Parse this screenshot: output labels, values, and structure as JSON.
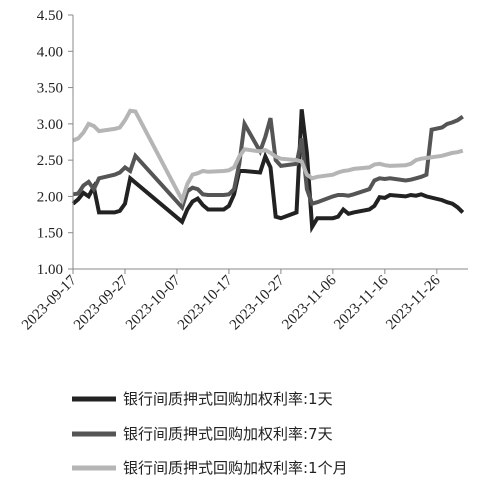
{
  "chart_data": {
    "type": "line",
    "title": "",
    "xlabel": "",
    "ylabel": "",
    "ylim": [
      1.0,
      4.5
    ],
    "y_ticks": [
      "4.50",
      "4.00",
      "3.50",
      "3.00",
      "2.50",
      "2.00",
      "1.50",
      "1.00"
    ],
    "y_tick_values": [
      4.5,
      4.0,
      3.5,
      3.0,
      2.5,
      2.0,
      1.5,
      1.0
    ],
    "x_range": [
      "2023-09-17",
      "2023-12-02"
    ],
    "x_ticks": [
      "2023-09-17",
      "2023-09-27",
      "2023-10-07",
      "2023-10-17",
      "2023-10-27",
      "2023-11-06",
      "2023-11-16",
      "2023-11-26"
    ],
    "grid": false,
    "legend_position": "bottom",
    "series": [
      {
        "name": "银行间质押式回购加权利率:1天",
        "color": "#222222",
        "points": [
          [
            "2023-09-17",
            1.9
          ],
          [
            "2023-09-18",
            1.96
          ],
          [
            "2023-09-19",
            2.05
          ],
          [
            "2023-09-20",
            2.0
          ],
          [
            "2023-09-21",
            2.13
          ],
          [
            "2023-09-22",
            1.78
          ],
          [
            "2023-09-25",
            1.78
          ],
          [
            "2023-09-26",
            1.8
          ],
          [
            "2023-09-27",
            1.9
          ],
          [
            "2023-09-28",
            2.25
          ],
          [
            "2023-10-08",
            1.65
          ],
          [
            "2023-10-09",
            1.82
          ],
          [
            "2023-10-10",
            1.93
          ],
          [
            "2023-10-11",
            1.97
          ],
          [
            "2023-10-12",
            1.88
          ],
          [
            "2023-10-13",
            1.82
          ],
          [
            "2023-10-16",
            1.82
          ],
          [
            "2023-10-17",
            1.87
          ],
          [
            "2023-10-18",
            2.03
          ],
          [
            "2023-10-19",
            2.35
          ],
          [
            "2023-10-20",
            2.35
          ],
          [
            "2023-10-23",
            2.33
          ],
          [
            "2023-10-24",
            2.55
          ],
          [
            "2023-10-25",
            2.4
          ],
          [
            "2023-10-26",
            1.72
          ],
          [
            "2023-10-27",
            1.7
          ],
          [
            "2023-10-30",
            1.78
          ],
          [
            "2023-10-31",
            3.2
          ],
          [
            "2023-11-01",
            2.6
          ],
          [
            "2023-11-02",
            1.58
          ],
          [
            "2023-11-03",
            1.7
          ],
          [
            "2023-11-06",
            1.7
          ],
          [
            "2023-11-07",
            1.72
          ],
          [
            "2023-11-08",
            1.82
          ],
          [
            "2023-11-09",
            1.76
          ],
          [
            "2023-11-10",
            1.78
          ],
          [
            "2023-11-13",
            1.82
          ],
          [
            "2023-11-14",
            1.87
          ],
          [
            "2023-11-15",
            1.99
          ],
          [
            "2023-11-16",
            1.98
          ],
          [
            "2023-11-17",
            2.02
          ],
          [
            "2023-11-20",
            2.0
          ],
          [
            "2023-11-21",
            2.02
          ],
          [
            "2023-11-22",
            2.01
          ],
          [
            "2023-11-23",
            2.03
          ],
          [
            "2023-11-24",
            2.0
          ],
          [
            "2023-11-27",
            1.95
          ],
          [
            "2023-11-28",
            1.92
          ],
          [
            "2023-11-29",
            1.9
          ],
          [
            "2023-11-30",
            1.85
          ],
          [
            "2023-12-01",
            1.78
          ]
        ]
      },
      {
        "name": "银行间质押式回购加权利率:7天",
        "color": "#555555",
        "points": [
          [
            "2023-09-17",
            2.03
          ],
          [
            "2023-09-18",
            2.04
          ],
          [
            "2023-09-19",
            2.15
          ],
          [
            "2023-09-20",
            2.2
          ],
          [
            "2023-09-21",
            2.1
          ],
          [
            "2023-09-22",
            2.25
          ],
          [
            "2023-09-25",
            2.3
          ],
          [
            "2023-09-26",
            2.33
          ],
          [
            "2023-09-27",
            2.4
          ],
          [
            "2023-09-28",
            2.35
          ],
          [
            "2023-09-29",
            2.56
          ],
          [
            "2023-10-08",
            1.85
          ],
          [
            "2023-10-09",
            2.07
          ],
          [
            "2023-10-10",
            2.12
          ],
          [
            "2023-10-11",
            2.1
          ],
          [
            "2023-10-12",
            2.03
          ],
          [
            "2023-10-13",
            2.02
          ],
          [
            "2023-10-16",
            2.02
          ],
          [
            "2023-10-17",
            2.03
          ],
          [
            "2023-10-18",
            2.1
          ],
          [
            "2023-10-19",
            2.45
          ],
          [
            "2023-10-20",
            3.0
          ],
          [
            "2023-10-23",
            2.62
          ],
          [
            "2023-10-24",
            2.82
          ],
          [
            "2023-10-25",
            3.08
          ],
          [
            "2023-10-26",
            2.5
          ],
          [
            "2023-10-27",
            2.42
          ],
          [
            "2023-10-30",
            2.45
          ],
          [
            "2023-10-31",
            2.8
          ],
          [
            "2023-11-01",
            2.1
          ],
          [
            "2023-11-02",
            1.9
          ],
          [
            "2023-11-03",
            1.92
          ],
          [
            "2023-11-06",
            2.0
          ],
          [
            "2023-11-07",
            2.02
          ],
          [
            "2023-11-08",
            2.02
          ],
          [
            "2023-11-09",
            2.01
          ],
          [
            "2023-11-10",
            2.03
          ],
          [
            "2023-11-13",
            2.1
          ],
          [
            "2023-11-14",
            2.22
          ],
          [
            "2023-11-15",
            2.25
          ],
          [
            "2023-11-16",
            2.24
          ],
          [
            "2023-11-17",
            2.25
          ],
          [
            "2023-11-20",
            2.22
          ],
          [
            "2023-11-21",
            2.23
          ],
          [
            "2023-11-22",
            2.25
          ],
          [
            "2023-11-23",
            2.27
          ],
          [
            "2023-11-24",
            2.3
          ],
          [
            "2023-11-25",
            2.92
          ],
          [
            "2023-11-27",
            2.95
          ],
          [
            "2023-11-28",
            3.0
          ],
          [
            "2023-11-29",
            3.02
          ],
          [
            "2023-11-30",
            3.05
          ],
          [
            "2023-12-01",
            3.1
          ]
        ]
      },
      {
        "name": "银行间质押式回购加权利率:1个月",
        "color": "#b5b5b5",
        "points": [
          [
            "2023-09-17",
            2.77
          ],
          [
            "2023-09-18",
            2.8
          ],
          [
            "2023-09-19",
            2.88
          ],
          [
            "2023-09-20",
            3.0
          ],
          [
            "2023-09-21",
            2.97
          ],
          [
            "2023-09-22",
            2.9
          ],
          [
            "2023-09-25",
            2.93
          ],
          [
            "2023-09-26",
            2.95
          ],
          [
            "2023-09-27",
            3.05
          ],
          [
            "2023-09-28",
            3.18
          ],
          [
            "2023-09-29",
            3.17
          ],
          [
            "2023-10-08",
            1.95
          ],
          [
            "2023-10-09",
            2.17
          ],
          [
            "2023-10-10",
            2.3
          ],
          [
            "2023-10-11",
            2.32
          ],
          [
            "2023-10-12",
            2.35
          ],
          [
            "2023-10-13",
            2.34
          ],
          [
            "2023-10-16",
            2.35
          ],
          [
            "2023-10-17",
            2.36
          ],
          [
            "2023-10-18",
            2.4
          ],
          [
            "2023-10-19",
            2.55
          ],
          [
            "2023-10-20",
            2.65
          ],
          [
            "2023-10-23",
            2.62
          ],
          [
            "2023-10-24",
            2.64
          ],
          [
            "2023-10-25",
            2.6
          ],
          [
            "2023-10-26",
            2.55
          ],
          [
            "2023-10-27",
            2.52
          ],
          [
            "2023-10-30",
            2.5
          ],
          [
            "2023-10-31",
            2.48
          ],
          [
            "2023-11-01",
            2.3
          ],
          [
            "2023-11-02",
            2.25
          ],
          [
            "2023-11-03",
            2.27
          ],
          [
            "2023-11-06",
            2.3
          ],
          [
            "2023-11-07",
            2.33
          ],
          [
            "2023-11-08",
            2.35
          ],
          [
            "2023-11-09",
            2.36
          ],
          [
            "2023-11-10",
            2.38
          ],
          [
            "2023-11-13",
            2.4
          ],
          [
            "2023-11-14",
            2.44
          ],
          [
            "2023-11-15",
            2.45
          ],
          [
            "2023-11-16",
            2.43
          ],
          [
            "2023-11-17",
            2.42
          ],
          [
            "2023-11-20",
            2.43
          ],
          [
            "2023-11-21",
            2.45
          ],
          [
            "2023-11-22",
            2.5
          ],
          [
            "2023-11-23",
            2.52
          ],
          [
            "2023-11-24",
            2.53
          ],
          [
            "2023-11-27",
            2.56
          ],
          [
            "2023-11-28",
            2.58
          ],
          [
            "2023-11-29",
            2.6
          ],
          [
            "2023-11-30",
            2.61
          ],
          [
            "2023-12-01",
            2.63
          ]
        ]
      }
    ]
  }
}
